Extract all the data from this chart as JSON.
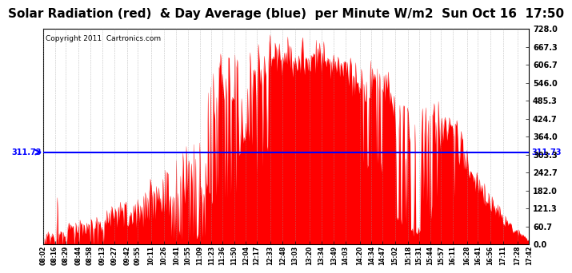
{
  "title": "Solar Radiation (red)  & Day Average (blue)  per Minute W/m2  Sun Oct 16  17:50",
  "copyright": "Copyright 2011  Cartronics.com",
  "y_min": 0.0,
  "y_max": 728.0,
  "y_ticks": [
    0.0,
    60.7,
    121.3,
    182.0,
    242.7,
    303.3,
    364.0,
    424.7,
    485.3,
    546.0,
    606.7,
    667.3,
    728.0
  ],
  "blue_line_y": 311.73,
  "blue_line_label": "311.73",
  "fill_color": "#FF0000",
  "line_color": "#FF0000",
  "blue_color": "#0000FF",
  "background_color": "#FFFFFF",
  "grid_color": "#999999",
  "title_fontsize": 11,
  "copyright_fontsize": 6.5,
  "label_fontsize": 7,
  "xtick_labels": [
    "08:02",
    "08:16",
    "08:29",
    "08:44",
    "08:58",
    "09:13",
    "09:27",
    "09:42",
    "09:55",
    "10:11",
    "10:26",
    "10:41",
    "10:55",
    "11:09",
    "11:23",
    "11:36",
    "11:50",
    "12:04",
    "12:17",
    "12:33",
    "12:48",
    "13:03",
    "13:20",
    "13:34",
    "13:49",
    "14:03",
    "14:20",
    "14:34",
    "14:47",
    "15:02",
    "15:18",
    "15:31",
    "15:44",
    "15:57",
    "16:11",
    "16:28",
    "16:41",
    "16:56",
    "17:11",
    "17:28",
    "17:42"
  ]
}
